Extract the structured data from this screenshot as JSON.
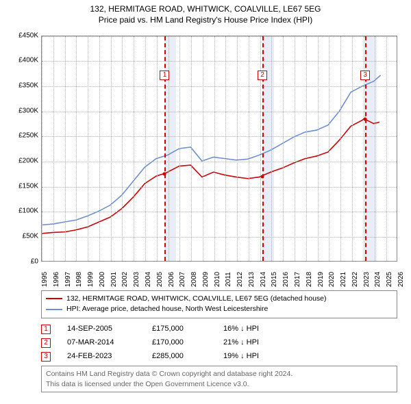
{
  "title_line1": "132, HERMITAGE ROAD, WHITWICK, COALVILLE, LE67 5EG",
  "title_line2": "Price paid vs. HM Land Registry's House Price Index (HPI)",
  "chart": {
    "type": "line",
    "background_color": "#ffffff",
    "grid_color": "#b0b0b0",
    "axis_color": "#888888",
    "band_color": "#e8edf7",
    "marker_dash_color": "#d00000",
    "x": {
      "min": 1995,
      "max": 2026,
      "step": 1
    },
    "y": {
      "min": 0,
      "max": 450000,
      "step": 50000,
      "prefix": "£",
      "suffix": "K",
      "divide": 1000
    },
    "bands": [
      {
        "from": 2005.7,
        "to": 2006.7
      },
      {
        "from": 2014.2,
        "to": 2015.2
      },
      {
        "from": 2023.15,
        "to": 2024.15
      }
    ],
    "event_markers": [
      {
        "n": "1",
        "x": 2005.7,
        "y": 175000
      },
      {
        "n": "2",
        "x": 2014.2,
        "y": 170000
      },
      {
        "n": "3",
        "x": 2023.15,
        "y": 285000
      }
    ],
    "series": [
      {
        "name": "price_paid",
        "label": "132, HERMITAGE ROAD, WHITWICK, COALVILLE, LE67 5EG (detached house)",
        "color": "#d00000",
        "width": 1.6,
        "points": [
          [
            1995,
            55000
          ],
          [
            1996,
            57000
          ],
          [
            1997,
            58000
          ],
          [
            1998,
            62000
          ],
          [
            1999,
            68000
          ],
          [
            2000,
            78000
          ],
          [
            2001,
            88000
          ],
          [
            2002,
            105000
          ],
          [
            2003,
            128000
          ],
          [
            2004,
            155000
          ],
          [
            2005,
            170000
          ],
          [
            2005.7,
            175000
          ],
          [
            2006,
            178000
          ],
          [
            2007,
            190000
          ],
          [
            2008,
            192000
          ],
          [
            2009,
            168000
          ],
          [
            2010,
            178000
          ],
          [
            2011,
            172000
          ],
          [
            2012,
            168000
          ],
          [
            2013,
            165000
          ],
          [
            2014,
            168000
          ],
          [
            2014.2,
            170000
          ],
          [
            2015,
            178000
          ],
          [
            2016,
            186000
          ],
          [
            2017,
            196000
          ],
          [
            2018,
            205000
          ],
          [
            2019,
            210000
          ],
          [
            2020,
            218000
          ],
          [
            2021,
            242000
          ],
          [
            2022,
            270000
          ],
          [
            2023,
            282000
          ],
          [
            2023.15,
            285000
          ],
          [
            2024,
            275000
          ],
          [
            2024.5,
            278000
          ]
        ]
      },
      {
        "name": "hpi",
        "label": "HPI: Average price, detached house, North West Leicestershire",
        "color": "#6a8fd8",
        "width": 1.6,
        "points": [
          [
            1995,
            72000
          ],
          [
            1996,
            74000
          ],
          [
            1997,
            78000
          ],
          [
            1998,
            82000
          ],
          [
            1999,
            90000
          ],
          [
            2000,
            100000
          ],
          [
            2001,
            112000
          ],
          [
            2002,
            132000
          ],
          [
            2003,
            160000
          ],
          [
            2004,
            188000
          ],
          [
            2005,
            205000
          ],
          [
            2006,
            212000
          ],
          [
            2007,
            225000
          ],
          [
            2008,
            228000
          ],
          [
            2009,
            200000
          ],
          [
            2010,
            208000
          ],
          [
            2011,
            205000
          ],
          [
            2012,
            202000
          ],
          [
            2013,
            204000
          ],
          [
            2014,
            212000
          ],
          [
            2015,
            222000
          ],
          [
            2016,
            235000
          ],
          [
            2017,
            248000
          ],
          [
            2018,
            258000
          ],
          [
            2019,
            262000
          ],
          [
            2020,
            272000
          ],
          [
            2021,
            300000
          ],
          [
            2022,
            338000
          ],
          [
            2023,
            350000
          ],
          [
            2024,
            360000
          ],
          [
            2024.6,
            372000
          ]
        ]
      }
    ]
  },
  "legend": {
    "rows": [
      {
        "color": "#d00000",
        "label": "132, HERMITAGE ROAD, WHITWICK, COALVILLE, LE67 5EG (detached house)"
      },
      {
        "color": "#6a8fd8",
        "label": "HPI: Average price, detached house, North West Leicestershire"
      }
    ]
  },
  "events": [
    {
      "n": "1",
      "date": "14-SEP-2005",
      "price": "£175,000",
      "delta": "16% ↓ HPI"
    },
    {
      "n": "2",
      "date": "07-MAR-2014",
      "price": "£170,000",
      "delta": "21% ↓ HPI"
    },
    {
      "n": "3",
      "date": "24-FEB-2023",
      "price": "£285,000",
      "delta": "19% ↓ HPI"
    }
  ],
  "footer": {
    "line1": "Contains HM Land Registry data © Crown copyright and database right 2024.",
    "line2": "This data is licensed under the Open Government Licence v3.0."
  }
}
